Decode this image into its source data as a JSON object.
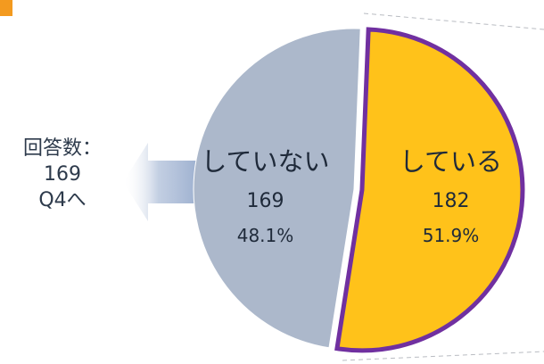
{
  "side_note": {
    "title": "回答数：",
    "count": "169",
    "next": "Q4へ"
  },
  "colors": {
    "yes": "#ffc21a",
    "no": "#acb8cb",
    "highlight_border": "#7030a0",
    "arrow": "#8ea4c8",
    "corner_mark": "#f39a1f",
    "text": "#2d3a4b"
  },
  "chart_data": {
    "type": "pie",
    "slices": [
      {
        "label": "している",
        "value": 182,
        "percent": "51.9%",
        "color": "#ffc21a",
        "highlighted": true
      },
      {
        "label": "していない",
        "value": 169,
        "percent": "48.1%",
        "color": "#acb8cb",
        "highlighted": false
      }
    ]
  }
}
